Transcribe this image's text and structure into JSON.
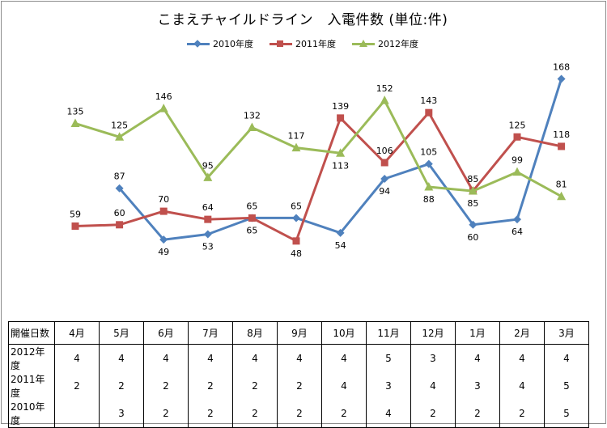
{
  "title": "こまえチャイルドライン　入電件数 (単位:件)",
  "colors": {
    "2010年度": "#4f81bd",
    "2011年度": "#c0504d",
    "2012年度": "#9bbb59"
  },
  "chart_data": {
    "type": "line",
    "title": "こまえチャイルドライン　入電件数 (単位:件)",
    "categories": [
      "4月",
      "5月",
      "6月",
      "7月",
      "8月",
      "9月",
      "10月",
      "11月",
      "12月",
      "1月",
      "2月",
      "3月"
    ],
    "series": [
      {
        "name": "2010年度",
        "color": "#4f81bd",
        "marker": "diamond",
        "values": [
          null,
          87,
          49,
          53,
          65,
          65,
          54,
          94,
          105,
          60,
          64,
          168
        ]
      },
      {
        "name": "2011年度",
        "color": "#c0504d",
        "marker": "square",
        "values": [
          59,
          60,
          70,
          64,
          65,
          48,
          139,
          106,
          143,
          85,
          125,
          118
        ]
      },
      {
        "name": "2012年度",
        "color": "#9bbb59",
        "marker": "triangle",
        "values": [
          135,
          125,
          146,
          95,
          132,
          117,
          113,
          152,
          88,
          85,
          99,
          81
        ]
      }
    ],
    "legend": "top",
    "grid": false
  },
  "table": {
    "header_label": "開催日数",
    "rows": [
      {
        "label": "2012年度",
        "values": [
          "4",
          "4",
          "4",
          "4",
          "4",
          "4",
          "4",
          "5",
          "3",
          "4",
          "4",
          "4"
        ]
      },
      {
        "label": "2011年度",
        "values": [
          "2",
          "2",
          "2",
          "2",
          "2",
          "2",
          "4",
          "3",
          "4",
          "3",
          "4",
          "5"
        ]
      },
      {
        "label": "2010年度",
        "values": [
          "",
          "3",
          "2",
          "2",
          "2",
          "2",
          "2",
          "4",
          "2",
          "2",
          "2",
          "5"
        ]
      }
    ]
  }
}
